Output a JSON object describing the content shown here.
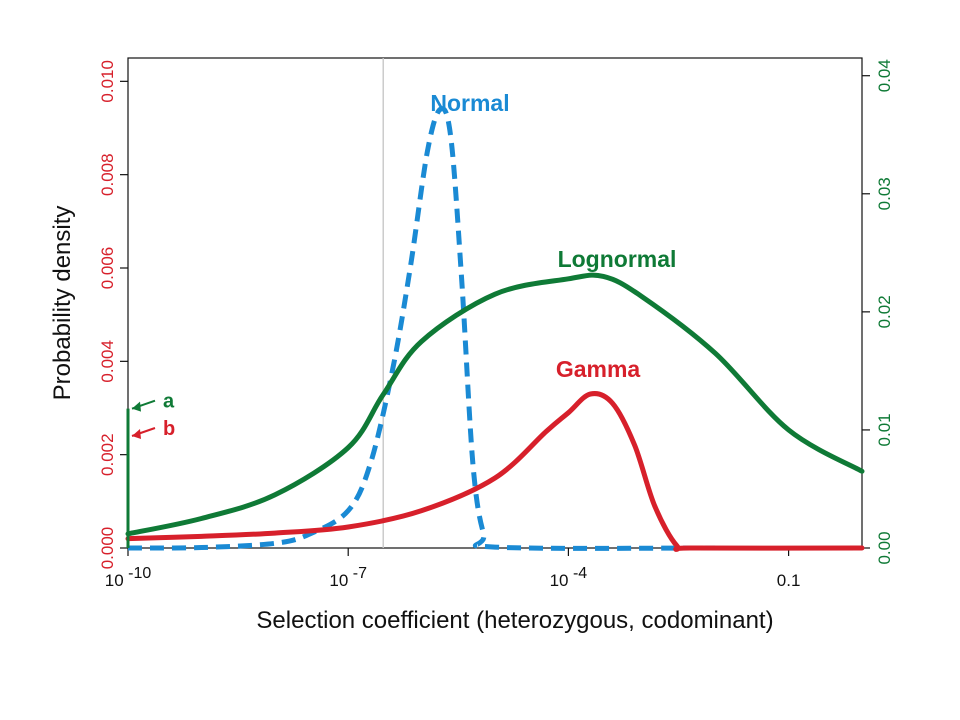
{
  "chart_data": {
    "type": "line",
    "title": "",
    "xlabel": "Selection coefficient (heterozygous, codominant)",
    "ylabel": "Probability density",
    "x_scale": "log10",
    "xlim": [
      1e-10,
      1
    ],
    "x_ticks": [
      {
        "value": 1e-10,
        "base": "10",
        "exp": "-10"
      },
      {
        "value": 1e-07,
        "base": "10",
        "exp": "-7"
      },
      {
        "value": 0.0001,
        "base": "10",
        "exp": "-4"
      },
      {
        "value": 0.1,
        "label": "0.1"
      }
    ],
    "y_left": {
      "range": [
        0,
        0.0105
      ],
      "ticks": [
        0.0,
        0.002,
        0.004,
        0.006,
        0.008,
        0.01
      ],
      "tick_labels": [
        "0.000",
        "0.002",
        "0.004",
        "0.006",
        "0.008",
        "0.010"
      ],
      "color": "#d7202b"
    },
    "y_right": {
      "range": [
        0,
        0.0415
      ],
      "ticks": [
        0.0,
        0.01,
        0.02,
        0.03,
        0.04
      ],
      "tick_labels": [
        "0.00",
        "0.01",
        "0.02",
        "0.03",
        "0.04"
      ],
      "color": "#0f7a36"
    },
    "reference_line": {
      "x": 3e-07,
      "color": "#c8c8c8"
    },
    "series": [
      {
        "name": "Normal",
        "axis": "left",
        "color": "#1a8ad4",
        "style": "dashed",
        "points": [
          [
            1e-10,
            0.0
          ],
          [
            1e-09,
            1e-05
          ],
          [
            1e-08,
            0.0001
          ],
          [
            3e-08,
            0.0003
          ],
          [
            1e-07,
            0.0008
          ],
          [
            2e-07,
            0.0018
          ],
          [
            4e-07,
            0.0038
          ],
          [
            7e-07,
            0.006
          ],
          [
            1.2e-06,
            0.0085
          ],
          [
            1.8e-06,
            0.0094
          ],
          [
            2.5e-06,
            0.0088
          ],
          [
            3.5e-06,
            0.0058
          ],
          [
            5e-06,
            0.0018
          ],
          [
            7e-06,
            0.0003
          ],
          [
            1e-05,
            2e-05
          ],
          [
            0.01,
            0.0
          ]
        ],
        "label": "Normal"
      },
      {
        "name": "Gamma",
        "axis": "left",
        "color": "#d7202b",
        "style": "solid",
        "points": [
          [
            1e-10,
            0.0002
          ],
          [
            1e-09,
            0.00025
          ],
          [
            1e-08,
            0.00032
          ],
          [
            1e-07,
            0.00045
          ],
          [
            1e-06,
            0.0008
          ],
          [
            1e-05,
            0.0015
          ],
          [
            5e-05,
            0.0025
          ],
          [
            0.0001,
            0.0029
          ],
          [
            0.0002,
            0.0033
          ],
          [
            0.0004,
            0.0031
          ],
          [
            0.0008,
            0.0022
          ],
          [
            0.0015,
            0.0009
          ],
          [
            0.003,
            5e-05
          ],
          [
            0.005,
            0.0
          ],
          [
            1,
            0.0
          ]
        ],
        "label": "Gamma",
        "annotation": {
          "label": "b",
          "x": 1e-10,
          "y": 0.0024
        }
      },
      {
        "name": "Lognormal",
        "axis": "right",
        "color": "#0f7a36",
        "style": "solid",
        "points": [
          [
            1e-10,
            0.0012
          ],
          [
            1e-09,
            0.0025
          ],
          [
            1e-08,
            0.0045
          ],
          [
            1e-07,
            0.0085
          ],
          [
            3e-07,
            0.013
          ],
          [
            1e-06,
            0.0175
          ],
          [
            1e-05,
            0.0215
          ],
          [
            0.0001,
            0.0228
          ],
          [
            0.0003,
            0.023
          ],
          [
            0.001,
            0.0213
          ],
          [
            0.01,
            0.0165
          ],
          [
            0.1,
            0.01
          ],
          [
            1,
            0.0065
          ]
        ],
        "label": "Lognormal",
        "annotation": {
          "label": "a",
          "x": 1e-10,
          "y": 0.0118
        }
      }
    ],
    "grid": false,
    "legend": "none"
  }
}
